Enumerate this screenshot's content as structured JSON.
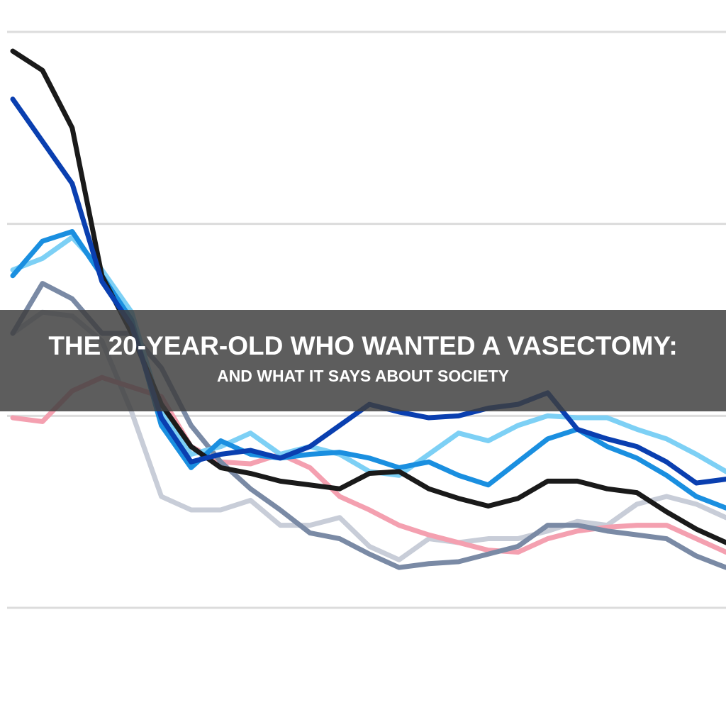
{
  "chart_data": {
    "type": "line",
    "title": "THE 20-YEAR-OLD WHO WANTED A VASECTOMY:",
    "subtitle": "AND WHAT IT SAYS ABOUT SOCIETY",
    "x": [
      0,
      1,
      2,
      3,
      4,
      5,
      6,
      7,
      8,
      9,
      10,
      11,
      12,
      13,
      14,
      15,
      16,
      17,
      18,
      19,
      20,
      21,
      22,
      23,
      24
    ],
    "xlim": [
      0,
      24
    ],
    "ylim": [
      0,
      3
    ],
    "yticks": [
      0,
      1,
      2,
      3
    ],
    "grid": true,
    "series": [
      {
        "color": "#c8cdd8",
        "values": [
          1.43,
          1.54,
          1.52,
          1.39,
          1.02,
          0.58,
          0.51,
          0.51,
          0.56,
          0.43,
          0.43,
          0.47,
          0.32,
          0.25,
          0.36,
          0.34,
          0.36,
          0.36,
          0.4,
          0.45,
          0.43,
          0.54,
          0.58,
          0.54,
          0.47
        ]
      },
      {
        "color": "#f4a0b0",
        "values": [
          0.99,
          0.97,
          1.13,
          1.2,
          1.15,
          1.1,
          0.84,
          0.76,
          0.75,
          0.8,
          0.73,
          0.58,
          0.51,
          0.43,
          0.38,
          0.34,
          0.3,
          0.29,
          0.36,
          0.4,
          0.42,
          0.43,
          0.43,
          0.36,
          0.29
        ]
      },
      {
        "color": "#7a8aa5",
        "values": [
          1.43,
          1.69,
          1.61,
          1.43,
          1.43,
          1.25,
          0.95,
          0.76,
          0.62,
          0.51,
          0.39,
          0.36,
          0.28,
          0.21,
          0.23,
          0.24,
          0.28,
          0.32,
          0.43,
          0.43,
          0.4,
          0.38,
          0.36,
          0.27,
          0.21
        ]
      },
      {
        "color": "#7dd0f5",
        "values": [
          1.76,
          1.82,
          1.93,
          1.76,
          1.54,
          1.02,
          0.8,
          0.84,
          0.91,
          0.8,
          0.84,
          0.8,
          0.71,
          0.69,
          0.8,
          0.91,
          0.87,
          0.95,
          1.0,
          0.99,
          0.99,
          0.93,
          0.88,
          0.8,
          0.71
        ]
      },
      {
        "color": "#1a8fe0",
        "values": [
          1.73,
          1.91,
          1.96,
          1.73,
          1.5,
          0.95,
          0.73,
          0.87,
          0.8,
          0.78,
          0.8,
          0.81,
          0.78,
          0.73,
          0.76,
          0.69,
          0.64,
          0.76,
          0.88,
          0.93,
          0.84,
          0.78,
          0.69,
          0.58,
          0.52
        ]
      },
      {
        "color": "#1a1a1a",
        "values": [
          2.9,
          2.8,
          2.5,
          1.73,
          1.43,
          1.06,
          0.84,
          0.73,
          0.7,
          0.66,
          0.64,
          0.62,
          0.7,
          0.71,
          0.62,
          0.57,
          0.53,
          0.57,
          0.66,
          0.66,
          0.62,
          0.6,
          0.5,
          0.41,
          0.34
        ]
      },
      {
        "color": "#0a3fb0",
        "values": [
          2.65,
          2.43,
          2.21,
          1.7,
          1.47,
          0.99,
          0.76,
          0.8,
          0.82,
          0.78,
          0.84,
          0.95,
          1.06,
          1.02,
          0.99,
          1.0,
          1.04,
          1.06,
          1.12,
          0.93,
          0.88,
          0.84,
          0.76,
          0.65,
          0.67
        ]
      }
    ]
  }
}
